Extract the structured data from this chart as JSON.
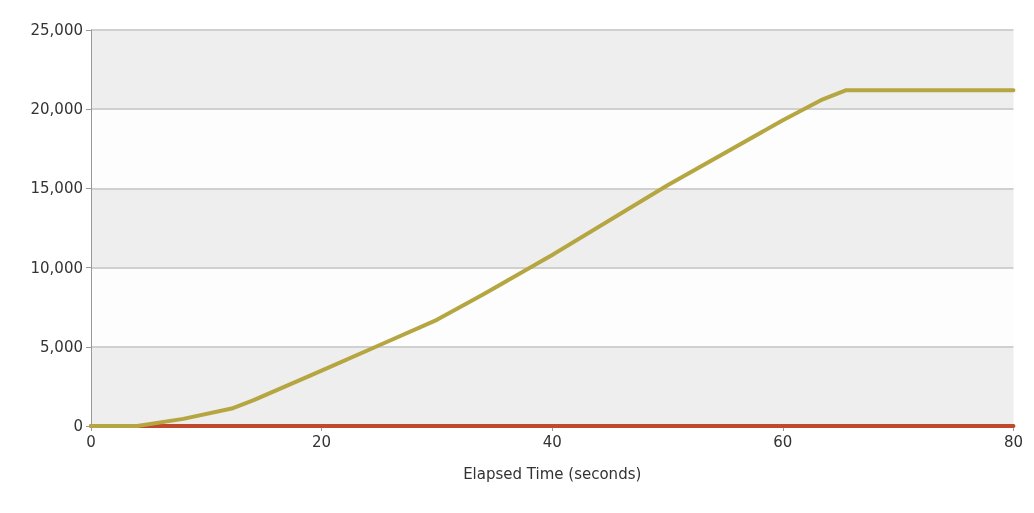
{
  "chart_data": {
    "type": "line",
    "xlabel": "Elapsed Time (seconds)",
    "series": [
      {
        "color": "#b5a642",
        "x": [
          0,
          4,
          8,
          12.2,
          14,
          20,
          25,
          30,
          34,
          40,
          50,
          60,
          63.3,
          65.5,
          70,
          80
        ],
        "values": [
          0,
          0,
          450,
          1100,
          1600,
          3500,
          5100,
          6700,
          8300,
          10800,
          15200,
          19300,
          20570,
          21200,
          21200,
          21200
        ]
      },
      {
        "color": "#c0492b",
        "x": [
          0,
          80
        ],
        "values": [
          0,
          0
        ]
      }
    ],
    "xlim": [
      0,
      80
    ],
    "xticks": [
      0,
      20,
      40,
      60,
      80
    ],
    "ylim": [
      0,
      25000
    ],
    "yticks": [
      0,
      {
        "value": 5000,
        "label": "5,000"
      },
      {
        "value": 10000,
        "label": "10,000"
      },
      {
        "value": 15000,
        "label": "15,000"
      },
      {
        "value": 20000,
        "label": "20,000"
      },
      {
        "value": 25000,
        "label": "25,000"
      }
    ],
    "grid": "y",
    "marker": "none",
    "line_style": "solid"
  }
}
